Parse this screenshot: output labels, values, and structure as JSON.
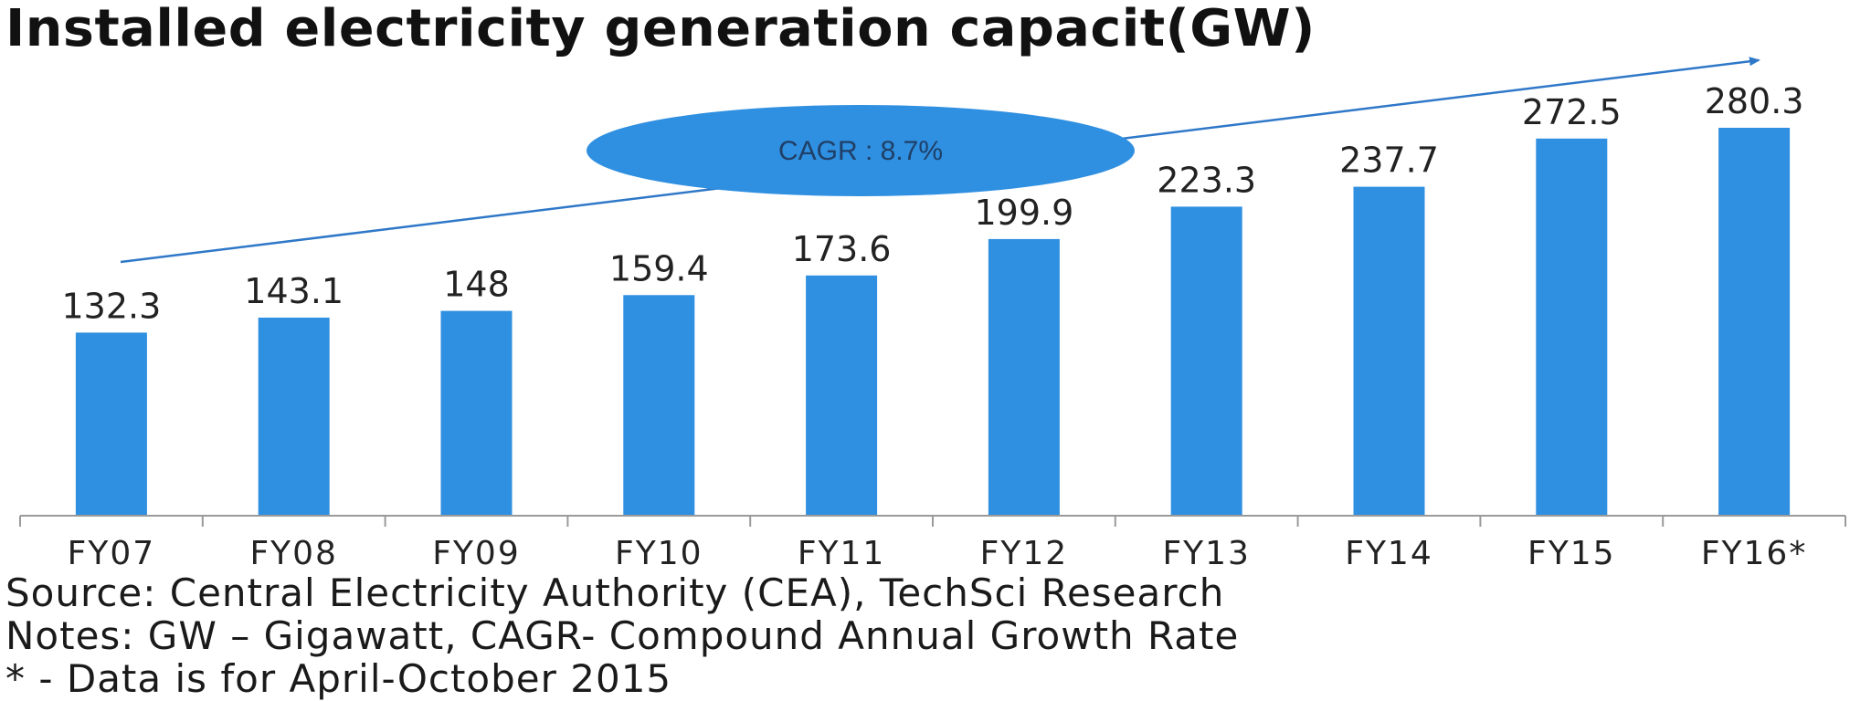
{
  "title": "Installed electricity generation capacit(GW)",
  "chart_data": {
    "type": "bar",
    "title": "Installed electricity generation capacit(GW)",
    "xlabel": "",
    "ylabel": "",
    "categories": [
      "FY07",
      "FY08",
      "FY09",
      "FY10",
      "FY11",
      "FY12",
      "FY13",
      "FY14",
      "FY15",
      "FY16*"
    ],
    "values": [
      132.3,
      143.1,
      148,
      159.4,
      173.6,
      199.9,
      223.3,
      237.7,
      272.5,
      280.3
    ],
    "value_labels": [
      "132.3",
      "143.1",
      "148",
      "159.4",
      "173.6",
      "199.9",
      "223.3",
      "237.7",
      "272.5",
      "280.3"
    ],
    "ylim": [
      0,
      290
    ],
    "grid": false,
    "legend": "none",
    "bar_color": "#2f8fe0",
    "annotation": {
      "text": "CAGR : 8.7%",
      "shape": "ellipse",
      "fill": "#2f8fe0",
      "arrow": "trend arrow from FY07 to FY16*"
    }
  },
  "notes": {
    "source": "Source: Central Electricity Authority (CEA), TechSci Research",
    "definitions": "Notes: GW – Gigawatt, CAGR- Compound Annual Growth Rate",
    "footnote": "*   - Data is for April-October 2015"
  }
}
